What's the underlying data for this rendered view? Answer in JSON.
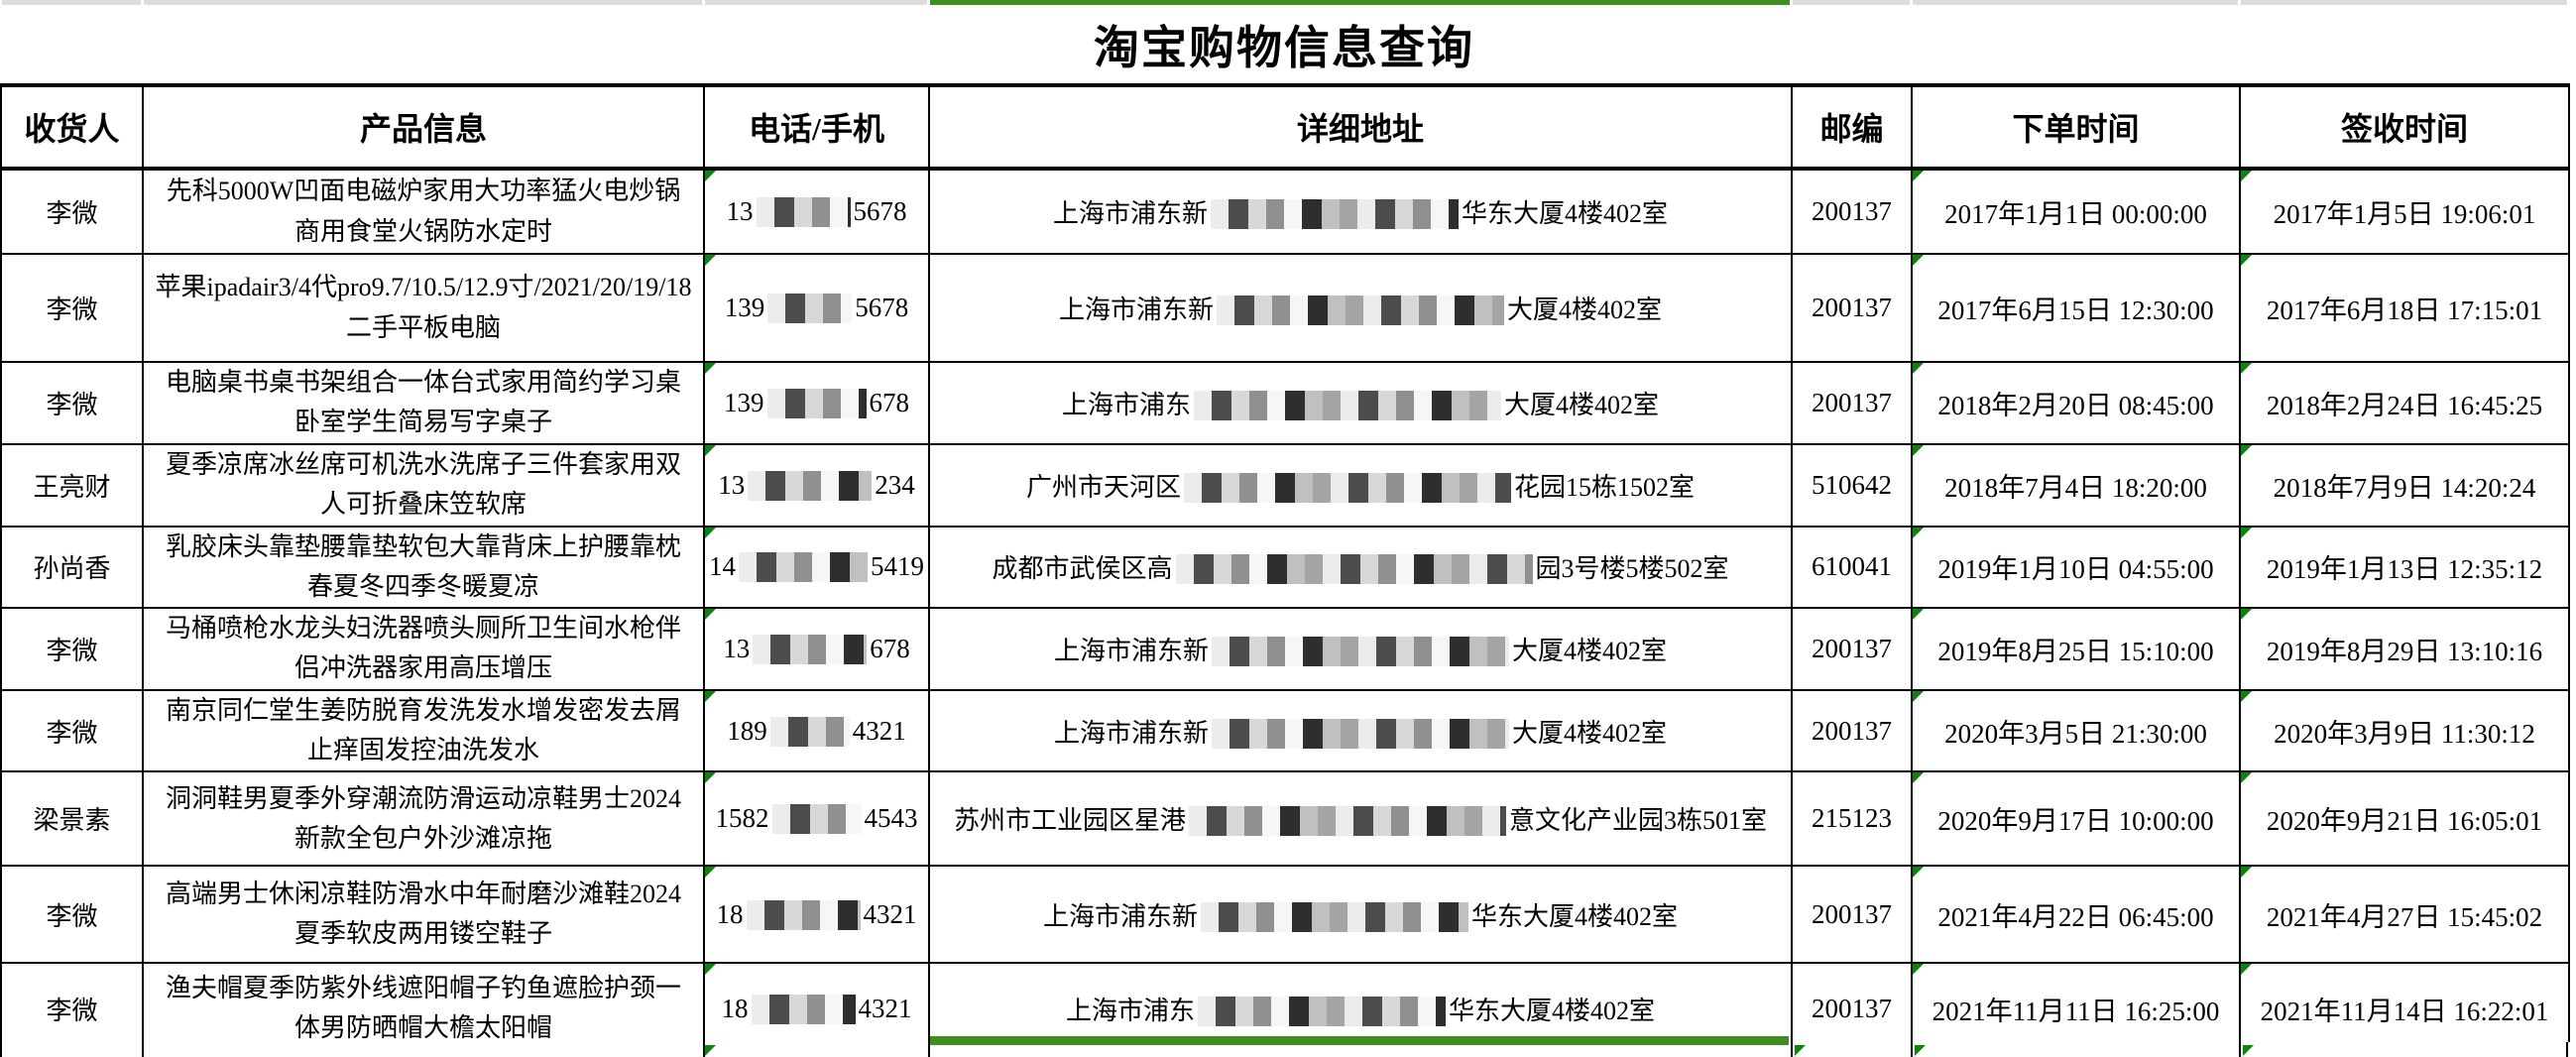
{
  "page_title": "淘宝购物信息查询",
  "colors": {
    "accent_green_fill": "#3f8e20",
    "error_triangle_green": "#0a870a",
    "top_strip_gray": "#dcdcdc",
    "grid_black": "#000000"
  },
  "table": {
    "columns": [
      {
        "key": "recipient",
        "label": "收货人"
      },
      {
        "key": "product",
        "label": "产品信息"
      },
      {
        "key": "phone",
        "label": "电话/手机"
      },
      {
        "key": "address",
        "label": "详细地址"
      },
      {
        "key": "zip",
        "label": "邮编"
      },
      {
        "key": "order",
        "label": "下单时间"
      },
      {
        "key": "sign",
        "label": "签收时间"
      }
    ],
    "rows": [
      {
        "recipient": "李微",
        "product": "先科5000W凹面电磁炉家用大功率猛火电炒锅商用食堂火锅防水定时",
        "phone_pre": "13",
        "phone_post": "5678",
        "phone_mask_w": 95,
        "address_pre": "上海市浦东新",
        "address_post": "华东大厦4楼402室",
        "addr_mask_w": 250,
        "zip": "200137",
        "order_time": "2017年1月1日 00:00:00",
        "sign_time": "2017年1月5日 19:06:01"
      },
      {
        "recipient": "李微",
        "product": "苹果ipadair3/4代pro9.7/10.5/12.9寸/2021/20/19/18二手平板电脑",
        "phone_pre": "139",
        "phone_post": "5678",
        "phone_mask_w": 85,
        "address_pre": "上海市浦东新",
        "address_post": "大厦4楼402室",
        "addr_mask_w": 290,
        "zip": "200137",
        "order_time": "2017年6月15日 12:30:00",
        "sign_time": "2017年6月18日 17:15:01"
      },
      {
        "recipient": "李微",
        "product": "电脑桌书桌书架组合一体台式家用简约学习桌卧室学生简易写字桌子",
        "phone_pre": "139",
        "phone_post": "678",
        "phone_mask_w": 100,
        "address_pre": "上海市浦东",
        "address_post": "大厦4楼402室",
        "addr_mask_w": 310,
        "zip": "200137",
        "order_time": "2018年2月20日 08:45:00",
        "sign_time": "2018年2月24日 16:45:25"
      },
      {
        "recipient": "王亮财",
        "product": "夏季凉席冰丝席可机洗水洗席子三件套家用双人可折叠床笠软席",
        "phone_pre": "13",
        "phone_post": "234",
        "phone_mask_w": 125,
        "address_pre": "广州市天河区",
        "address_post": "花园15栋1502室",
        "addr_mask_w": 330,
        "zip": "510642",
        "order_time": "2018年7月4日 18:20:00",
        "sign_time": "2018年7月9日 14:20:24"
      },
      {
        "recipient": "孙尚香",
        "product": "乳胶床头靠垫腰靠垫软包大靠背床上护腰靠枕春夏冬四季冬暖夏凉",
        "phone_pre": "14",
        "phone_post": "5419",
        "phone_mask_w": 130,
        "address_pre": "成都市武侯区高",
        "address_post": "园3号楼5楼502室",
        "addr_mask_w": 360,
        "zip": "610041",
        "order_time": "2019年1月10日 04:55:00",
        "sign_time": "2019年1月13日 12:35:12"
      },
      {
        "recipient": "李微",
        "product": "马桶喷枪水龙头妇洗器喷头厕所卫生间水枪伴侣冲洗器家用高压增压",
        "phone_pre": "13",
        "phone_post": "678",
        "phone_mask_w": 115,
        "address_pre": "上海市浦东新",
        "address_post": "大厦4楼402室",
        "addr_mask_w": 300,
        "zip": "200137",
        "order_time": "2019年8月25日 15:10:00",
        "sign_time": "2019年8月29日 13:10:16"
      },
      {
        "recipient": "李微",
        "product": "南京同仁堂生姜防脱育发洗发水增发密发去屑止痒固发控油洗发水",
        "phone_pre": "189",
        "phone_post": "4321",
        "phone_mask_w": 80,
        "address_pre": "上海市浦东新",
        "address_post": "大厦4楼402室",
        "addr_mask_w": 300,
        "zip": "200137",
        "order_time": "2020年3月5日 21:30:00",
        "sign_time": "2020年3月9日 11:30:12"
      },
      {
        "recipient": "梁景素",
        "product": "洞洞鞋男夏季外穿潮流防滑运动凉鞋男士2024新款全包户外沙滩凉拖",
        "phone_pre": "1582",
        "phone_post": "4543",
        "phone_mask_w": 90,
        "address_pre": "苏州市工业园区星港",
        "address_post": "意文化产业园3栋501室",
        "addr_mask_w": 320,
        "zip": "215123",
        "order_time": "2020年9月17日 10:00:00",
        "sign_time": "2020年9月21日 16:05:01"
      },
      {
        "recipient": "李微",
        "product": "高端男士休闲凉鞋防滑水中年耐磨沙滩鞋2024夏季软皮两用镂空鞋子",
        "phone_pre": "18",
        "phone_post": "4321",
        "phone_mask_w": 115,
        "address_pre": "上海市浦东新",
        "address_post": "华东大厦4楼402室",
        "addr_mask_w": 270,
        "zip": "200137",
        "order_time": "2021年4月22日 06:45:00",
        "sign_time": "2021年4月27日 15:45:02"
      },
      {
        "recipient": "李微",
        "product": "渔夫帽夏季防紫外线遮阳帽子钓鱼遮脸护颈一体男防晒帽大檐太阳帽",
        "phone_pre": "18",
        "phone_post": "4321",
        "phone_mask_w": 105,
        "address_pre": "上海市浦东",
        "address_post": "华东大厦4楼402室",
        "addr_mask_w": 250,
        "zip": "200137",
        "order_time": "2021年11月11日 16:25:00",
        "sign_time": "2021年11月14日 16:22:01"
      }
    ]
  }
}
